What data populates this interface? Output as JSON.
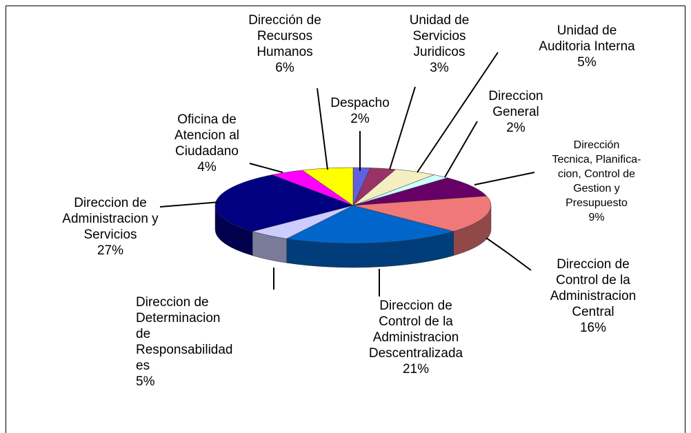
{
  "chart_data": {
    "type": "pie3d",
    "categories": [
      "Despacho",
      "Unidad de\nServicios\nJuridicos",
      "Unidad de\nAuditoria Interna",
      "Direccion\nGeneral",
      "Dirección\nTecnica, Planifica-\ncion, Control de\nGestion y\nPresupuesto",
      "Direccion de\nControl de la\nAdministracion\nCentral",
      "Direccion de\nControl de la\nAdministracion\nDescentralizada",
      "Direccion de\nDeterminacion\nde\nResponsabilidad\nes",
      "Direccion de\nAdministracion y\nServicios",
      "Oficina de\nAtencion al\nCiudadano",
      "Dirección de\nRecursos\nHumanos"
    ],
    "values": [
      2,
      3,
      5,
      2,
      9,
      16,
      21,
      5,
      27,
      4,
      6
    ],
    "value_labels": [
      "2%",
      "3%",
      "5%",
      "2%",
      "9%",
      "16%",
      "21%",
      "5%",
      "27%",
      "4%",
      "6%"
    ],
    "colors": [
      "#6060e0",
      "#993366",
      "#f4efc0",
      "#ccffff",
      "#660066",
      "#f07878",
      "#0066cc",
      "#ccccff",
      "#000080",
      "#ff00ff",
      "#ffff00"
    ]
  }
}
